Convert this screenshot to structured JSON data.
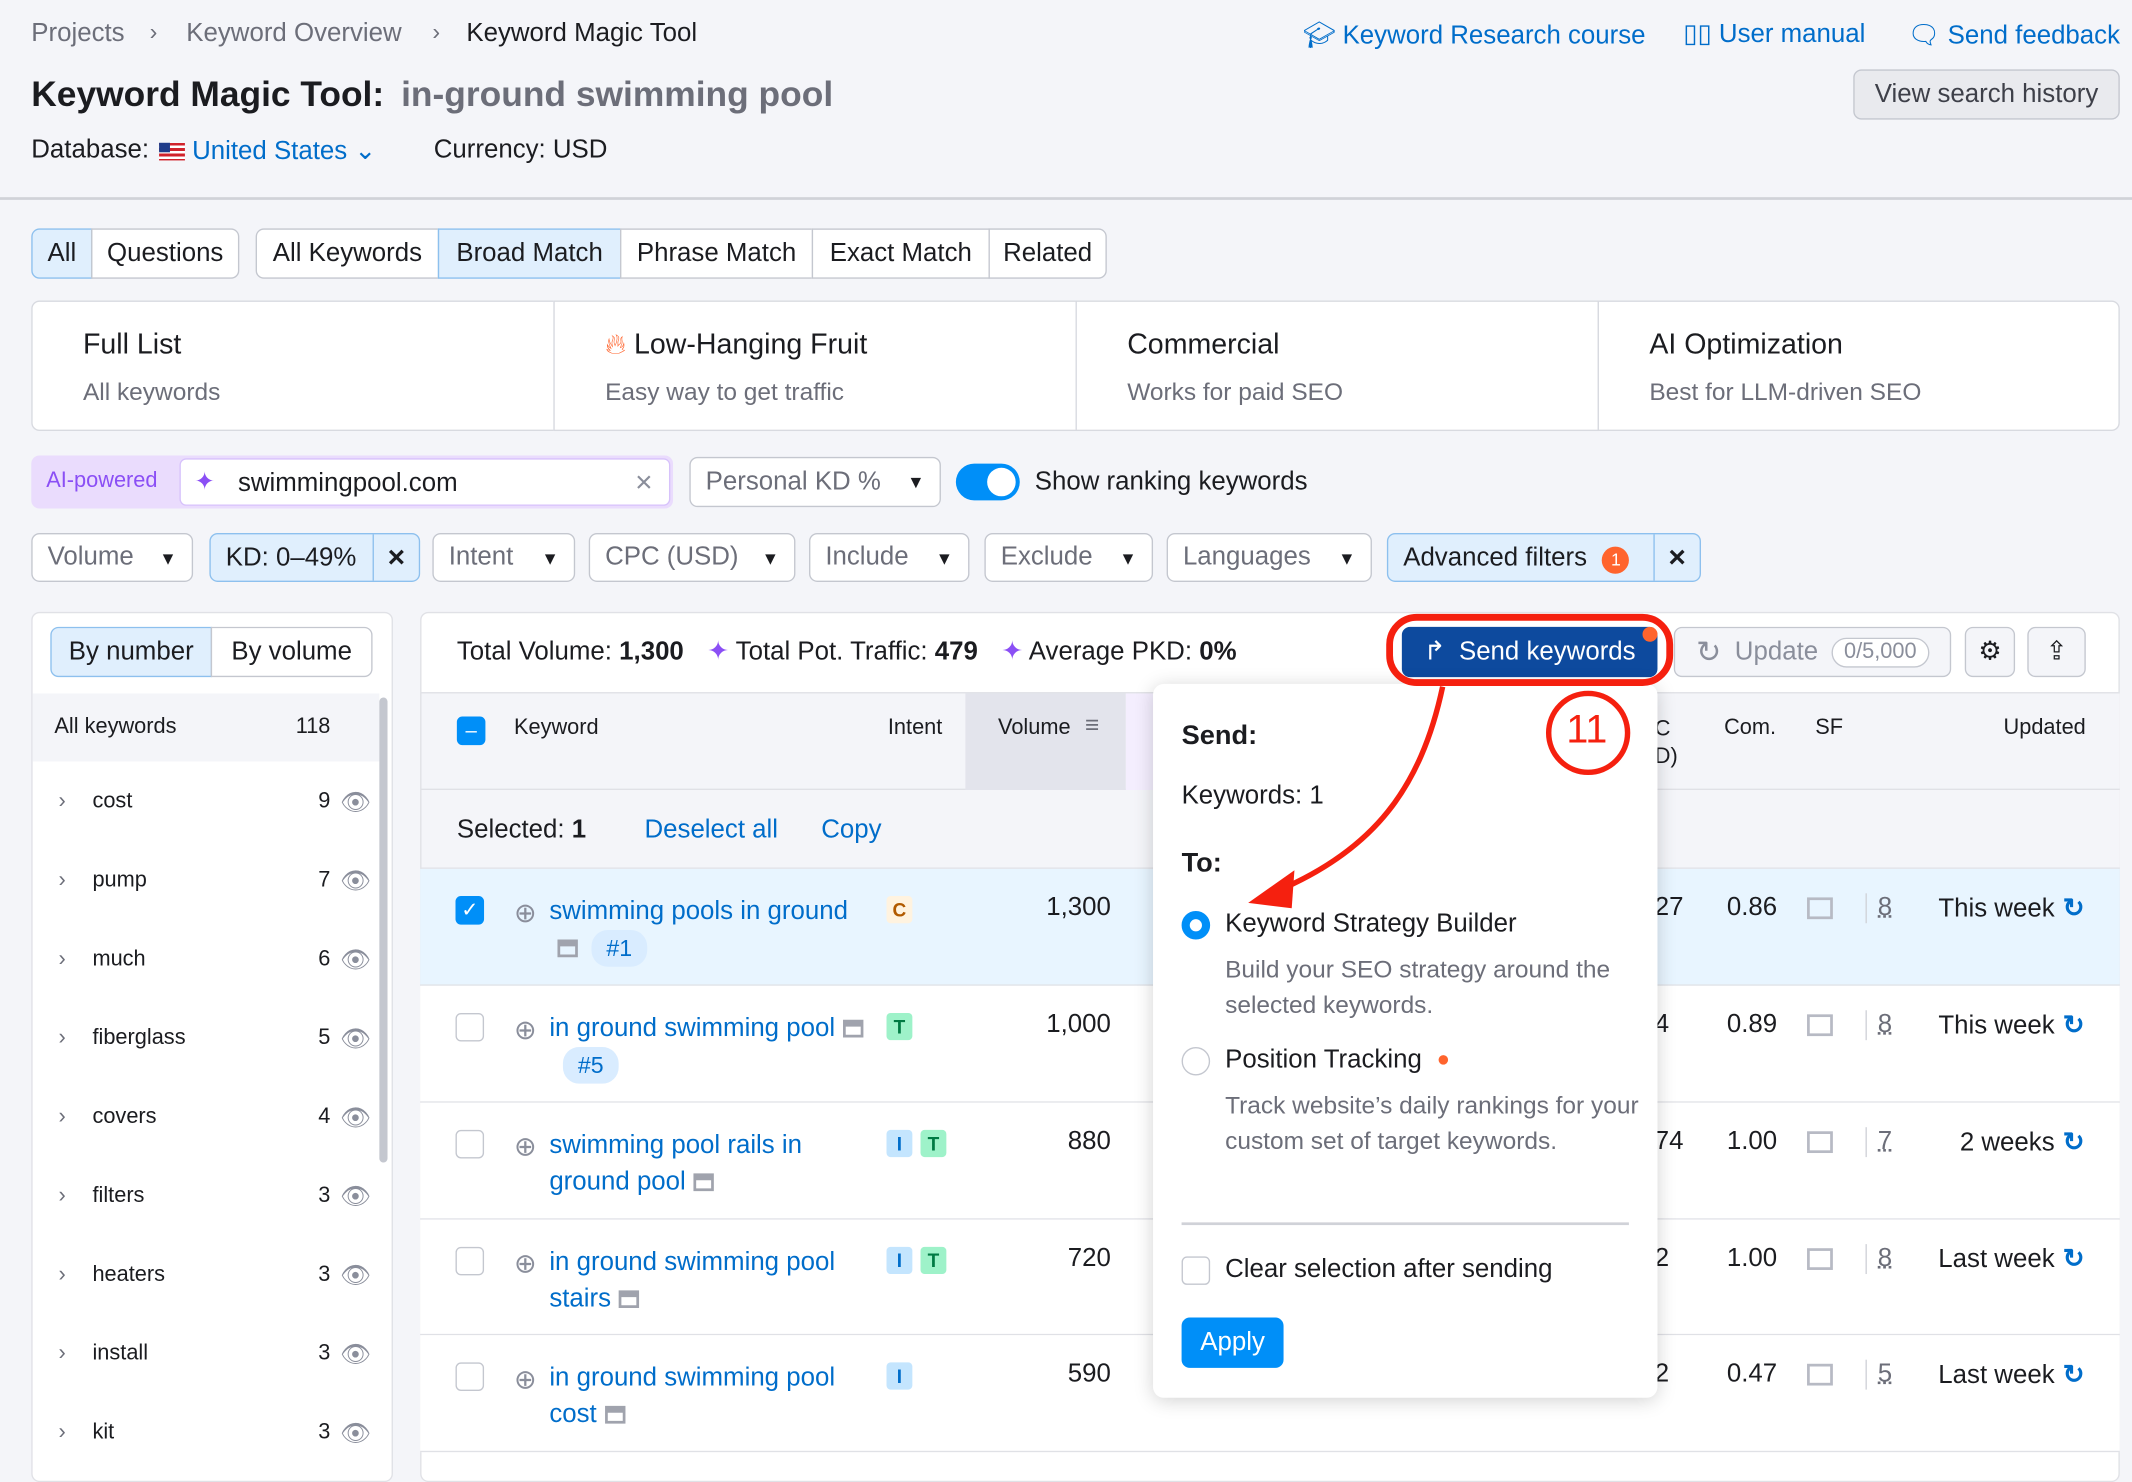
{
  "breadcrumb": [
    "Projects",
    "Keyword Overview",
    "Keyword Magic Tool"
  ],
  "top_links": {
    "course": "Keyword Research course",
    "manual": "User manual",
    "feedback": "Send feedback"
  },
  "title": {
    "prefix": "Keyword Magic Tool:",
    "query": "in-ground swimming pool"
  },
  "view_history": "View search history",
  "database": {
    "label": "Database:",
    "value": "United States"
  },
  "currency": "Currency: USD",
  "tabs_group1": [
    "All",
    "Questions"
  ],
  "tabs_group2": [
    "All Keywords",
    "Broad Match",
    "Phrase Match",
    "Exact Match",
    "Related"
  ],
  "cards": [
    {
      "title": "Full List",
      "sub": "All keywords"
    },
    {
      "title": "Low-Hanging Fruit",
      "sub": "Easy way to get traffic"
    },
    {
      "title": "Commercial",
      "sub": "Works for paid SEO"
    },
    {
      "title": "AI Optimization",
      "sub": "Best for LLM-driven SEO"
    }
  ],
  "ai": {
    "badge": "AI-powered",
    "domain": "swimmingpool.com",
    "personal_kd": "Personal KD %",
    "toggle_label": "Show ranking keywords",
    "toggle_on": true
  },
  "filters": {
    "volume": "Volume",
    "kd": "KD: 0–49%",
    "intent": "Intent",
    "cpc": "CPC (USD)",
    "include": "Include",
    "exclude": "Exclude",
    "languages": "Languages",
    "advanced": "Advanced filters",
    "advanced_count": "1"
  },
  "side": {
    "by_number": "By number",
    "by_volume": "By volume",
    "all_label": "All keywords",
    "all_count": "118",
    "items": [
      {
        "l": "cost",
        "c": "9"
      },
      {
        "l": "pump",
        "c": "7"
      },
      {
        "l": "much",
        "c": "6"
      },
      {
        "l": "fiberglass",
        "c": "5"
      },
      {
        "l": "covers",
        "c": "4"
      },
      {
        "l": "filters",
        "c": "3"
      },
      {
        "l": "heaters",
        "c": "3"
      },
      {
        "l": "install",
        "c": "3"
      },
      {
        "l": "kit",
        "c": "3"
      }
    ]
  },
  "summary": {
    "vol_label": "Total Volume:",
    "vol": "1,300",
    "traffic_label": "Total Pot. Traffic:",
    "traffic": "479",
    "pkd_label": "Average PKD:",
    "pkd": "0%"
  },
  "toolbar": {
    "send": "Send keywords",
    "update": "Update",
    "quota": "0/5,000"
  },
  "columns": {
    "keyword": "Keyword",
    "intent": "Intent",
    "volume": "Volume",
    "cpc_partial": "C\nD)",
    "com": "Com.",
    "sf": "SF",
    "updated": "Updated"
  },
  "selection": {
    "label": "Selected:",
    "count": "1",
    "deselect": "Deselect all",
    "copy": "Copy"
  },
  "rows": [
    {
      "kw": "swimming pools in ground",
      "rank": "#1",
      "intents": [
        "C"
      ],
      "vol": "1,300",
      "cpc": "27",
      "com": "0.86",
      "sf": "8",
      "upd": "This week",
      "checked": true
    },
    {
      "kw": "in ground swimming pool",
      "rank": "#5",
      "intents": [
        "T"
      ],
      "vol": "1,000",
      "cpc": "4",
      "com": "0.89",
      "sf": "8",
      "upd": "This week",
      "checked": false
    },
    {
      "kw": "swimming pool rails in ground pool",
      "rank": "",
      "intents": [
        "I",
        "T"
      ],
      "vol": "880",
      "cpc": "74",
      "com": "1.00",
      "sf": "7",
      "upd": "2 weeks",
      "checked": false
    },
    {
      "kw": "in ground swimming pool stairs",
      "rank": "",
      "intents": [
        "I",
        "T"
      ],
      "vol": "720",
      "cpc": "2",
      "com": "1.00",
      "sf": "8",
      "upd": "Last week",
      "checked": false
    },
    {
      "kw": "in ground swimming pool cost",
      "rank": "",
      "intents": [
        "I"
      ],
      "vol": "590",
      "cpc": "2",
      "com": "0.47",
      "sf": "5",
      "upd": "Last week",
      "checked": false
    }
  ],
  "popup": {
    "send": "Send:",
    "keywords": "Keywords: 1",
    "to": "To:",
    "opt1": "Keyword Strategy Builder",
    "opt1_desc": "Build your SEO strategy around the selected keywords.",
    "opt2": "Position Tracking",
    "opt2_desc": "Track website’s daily rankings for your custom set of target keywords.",
    "clear": "Clear selection after sending",
    "apply": "Apply",
    "selected_option": "Keyword Strategy Builder"
  },
  "annotation": {
    "step": "11",
    "color": "#f5200f"
  },
  "colors": {
    "accent": "#006dca",
    "send_button": "#0d4a9e",
    "apply": "#008ff8"
  }
}
